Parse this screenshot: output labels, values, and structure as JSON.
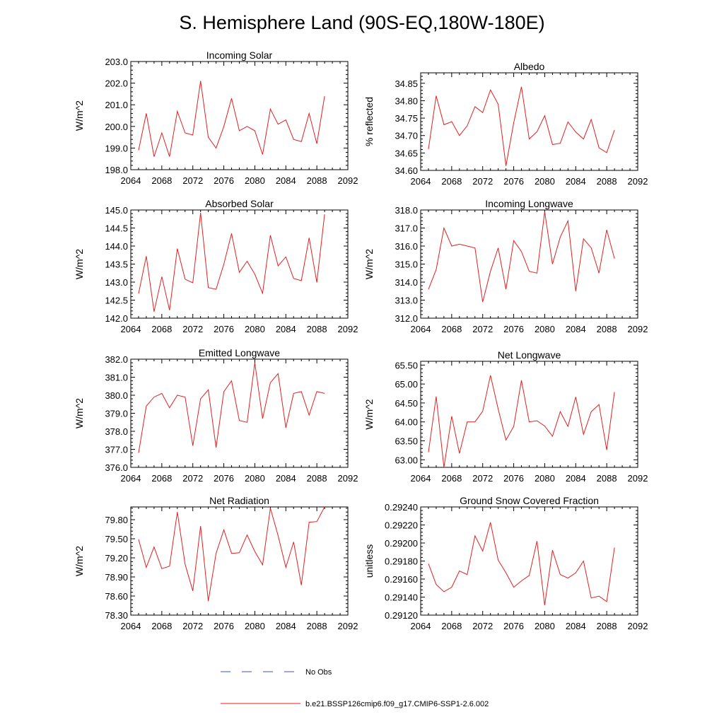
{
  "figure": {
    "title": "S. Hemisphere Land (90S-EQ,180W-180E)",
    "legend": [
      {
        "label": "No Obs",
        "color": "#3b4fc4",
        "dashed": true
      },
      {
        "label": "b.e21.BSSP126cmip6.f09_g17.CMIP6-SSP1-2.6.002",
        "color": "#e02020",
        "dashed": false
      }
    ]
  },
  "chart_data": [
    {
      "type": "line",
      "title": "Incoming Solar",
      "xlabel": "",
      "ylabel": "W/m^2",
      "xlim": [
        2064,
        2092
      ],
      "ylim": [
        198.0,
        203.0
      ],
      "xticks": [
        2064,
        2068,
        2072,
        2076,
        2080,
        2084,
        2088,
        2092
      ],
      "yticks": [
        198.0,
        199.0,
        200.0,
        201.0,
        202.0,
        203.0
      ],
      "ytick_labels": [
        "198.0",
        "199.0",
        "200.0",
        "201.0",
        "202.0",
        "203.0"
      ],
      "x": [
        2065,
        2066,
        2067,
        2068,
        2069,
        2070,
        2071,
        2072,
        2073,
        2074,
        2075,
        2076,
        2077,
        2078,
        2079,
        2080,
        2081,
        2082,
        2083,
        2084,
        2085,
        2086,
        2087,
        2088,
        2089
      ],
      "series": [
        {
          "name": "b.e21.BSSP126cmip6.f09_g17.CMIP6-SSP1-2.6.002",
          "color": "#e02020",
          "values": [
            198.9,
            200.6,
            198.6,
            199.7,
            198.6,
            200.7,
            199.7,
            199.6,
            202.1,
            199.5,
            199.0,
            200.0,
            201.3,
            199.8,
            200.0,
            199.8,
            198.7,
            200.8,
            200.1,
            200.3,
            199.4,
            199.3,
            200.6,
            199.2,
            201.4
          ]
        }
      ]
    },
    {
      "type": "line",
      "title": "Albedo",
      "xlabel": "",
      "ylabel": "% reflected",
      "xlim": [
        2064,
        2092
      ],
      "ylim": [
        34.6,
        34.88
      ],
      "xticks": [
        2064,
        2068,
        2072,
        2076,
        2080,
        2084,
        2088,
        2092
      ],
      "yticks": [
        34.6,
        34.65,
        34.7,
        34.75,
        34.8,
        34.85
      ],
      "ytick_labels": [
        "34.60",
        "34.65",
        "34.70",
        "34.75",
        "34.80",
        "34.85"
      ],
      "x": [
        2065,
        2066,
        2067,
        2068,
        2069,
        2070,
        2071,
        2072,
        2073,
        2074,
        2075,
        2076,
        2077,
        2078,
        2079,
        2080,
        2081,
        2082,
        2083,
        2084,
        2085,
        2086,
        2087,
        2088,
        2089
      ],
      "series": [
        {
          "name": "b.e21.BSSP126cmip6.f09_g17.CMIP6-SSP1-2.6.002",
          "color": "#e02020",
          "values": [
            34.661,
            34.814,
            34.731,
            34.74,
            34.7,
            34.728,
            34.783,
            34.766,
            34.831,
            34.79,
            34.613,
            34.737,
            34.84,
            34.69,
            34.711,
            34.757,
            34.674,
            34.678,
            34.739,
            34.71,
            34.69,
            34.746,
            34.665,
            34.651,
            34.716
          ]
        }
      ]
    },
    {
      "type": "line",
      "title": "Absorbed Solar",
      "xlabel": "",
      "ylabel": "W/m^2",
      "xlim": [
        2064,
        2092
      ],
      "ylim": [
        142.0,
        145.0
      ],
      "xticks": [
        2064,
        2068,
        2072,
        2076,
        2080,
        2084,
        2088,
        2092
      ],
      "yticks": [
        142.0,
        142.5,
        143.0,
        143.5,
        144.0,
        144.5,
        145.0
      ],
      "ytick_labels": [
        "142.0",
        "142.5",
        "143.0",
        "143.5",
        "144.0",
        "144.5",
        "145.0"
      ],
      "x": [
        2065,
        2066,
        2067,
        2068,
        2069,
        2070,
        2071,
        2072,
        2073,
        2074,
        2075,
        2076,
        2077,
        2078,
        2079,
        2080,
        2081,
        2082,
        2083,
        2084,
        2085,
        2086,
        2087,
        2088,
        2089
      ],
      "series": [
        {
          "name": "b.e21.BSSP126cmip6.f09_g17.CMIP6-SSP1-2.6.002",
          "color": "#e02020",
          "values": [
            142.68,
            143.72,
            142.18,
            143.15,
            142.22,
            143.93,
            143.08,
            142.98,
            144.92,
            142.85,
            142.8,
            143.5,
            144.35,
            143.27,
            143.58,
            143.22,
            142.69,
            144.3,
            143.45,
            143.7,
            143.1,
            143.04,
            144.23,
            142.99,
            144.88
          ]
        }
      ]
    },
    {
      "type": "line",
      "title": "Incoming Longwave",
      "xlabel": "",
      "ylabel": "W/m^2",
      "xlim": [
        2064,
        2092
      ],
      "ylim": [
        312.0,
        318.0
      ],
      "xticks": [
        2064,
        2068,
        2072,
        2076,
        2080,
        2084,
        2088,
        2092
      ],
      "yticks": [
        312.0,
        313.0,
        314.0,
        315.0,
        316.0,
        317.0,
        318.0
      ],
      "ytick_labels": [
        "312.0",
        "313.0",
        "314.0",
        "315.0",
        "316.0",
        "317.0",
        "318.0"
      ],
      "x": [
        2065,
        2066,
        2067,
        2068,
        2069,
        2070,
        2071,
        2072,
        2073,
        2074,
        2075,
        2076,
        2077,
        2078,
        2079,
        2080,
        2081,
        2082,
        2083,
        2084,
        2085,
        2086,
        2087,
        2088,
        2089
      ],
      "series": [
        {
          "name": "b.e21.BSSP126cmip6.f09_g17.CMIP6-SSP1-2.6.002",
          "color": "#e02020",
          "values": [
            313.6,
            314.7,
            317.0,
            316.0,
            316.1,
            316.0,
            315.9,
            312.9,
            314.6,
            315.9,
            313.6,
            316.3,
            315.7,
            314.6,
            314.5,
            317.9,
            315.0,
            316.5,
            317.4,
            313.5,
            316.4,
            315.9,
            314.5,
            316.9,
            315.3
          ]
        }
      ]
    },
    {
      "type": "line",
      "title": "Emitted Longwave",
      "xlabel": "",
      "ylabel": "W/m^2",
      "xlim": [
        2064,
        2092
      ],
      "ylim": [
        376.0,
        382.0
      ],
      "xticks": [
        2064,
        2068,
        2072,
        2076,
        2080,
        2084,
        2088,
        2092
      ],
      "yticks": [
        376.0,
        377.0,
        378.0,
        379.0,
        380.0,
        381.0,
        382.0
      ],
      "ytick_labels": [
        "376.0",
        "377.0",
        "378.0",
        "379.0",
        "380.0",
        "381.0",
        "382.0"
      ],
      "x": [
        2065,
        2066,
        2067,
        2068,
        2069,
        2070,
        2071,
        2072,
        2073,
        2074,
        2075,
        2076,
        2077,
        2078,
        2079,
        2080,
        2081,
        2082,
        2083,
        2084,
        2085,
        2086,
        2087,
        2088,
        2089
      ],
      "series": [
        {
          "name": "b.e21.BSSP126cmip6.f09_g17.CMIP6-SSP1-2.6.002",
          "color": "#e02020",
          "values": [
            376.8,
            379.4,
            379.9,
            380.1,
            379.3,
            380.0,
            379.9,
            377.2,
            379.8,
            380.3,
            377.1,
            380.2,
            380.8,
            378.6,
            378.5,
            381.8,
            378.7,
            380.7,
            381.2,
            378.2,
            380.1,
            380.2,
            378.9,
            380.2,
            380.1
          ]
        }
      ]
    },
    {
      "type": "line",
      "title": "Net Longwave",
      "xlabel": "",
      "ylabel": "W/m^2",
      "xlim": [
        2064,
        2092
      ],
      "ylim": [
        62.8,
        65.6
      ],
      "xticks": [
        2064,
        2068,
        2072,
        2076,
        2080,
        2084,
        2088,
        2092
      ],
      "yticks": [
        63.0,
        63.5,
        64.0,
        64.5,
        65.0,
        65.5
      ],
      "ytick_labels": [
        "63.00",
        "63.50",
        "64.00",
        "64.50",
        "65.00",
        "65.50"
      ],
      "x": [
        2065,
        2066,
        2067,
        2068,
        2069,
        2070,
        2071,
        2072,
        2073,
        2074,
        2075,
        2076,
        2077,
        2078,
        2079,
        2080,
        2081,
        2082,
        2083,
        2084,
        2085,
        2086,
        2087,
        2088,
        2089
      ],
      "series": [
        {
          "name": "b.e21.BSSP126cmip6.f09_g17.CMIP6-SSP1-2.6.002",
          "color": "#e02020",
          "values": [
            63.2,
            64.67,
            62.8,
            64.15,
            63.17,
            64.0,
            64.0,
            64.28,
            65.23,
            64.34,
            63.52,
            63.88,
            65.1,
            64.0,
            64.03,
            63.89,
            63.62,
            64.27,
            63.88,
            64.66,
            63.67,
            64.27,
            64.46,
            63.26,
            64.79
          ]
        }
      ]
    },
    {
      "type": "line",
      "title": "Net Radiation",
      "xlabel": "",
      "ylabel": "W/m^2",
      "xlim": [
        2064,
        2092
      ],
      "ylim": [
        78.3,
        80.0
      ],
      "xticks": [
        2064,
        2068,
        2072,
        2076,
        2080,
        2084,
        2088,
        2092
      ],
      "yticks": [
        78.3,
        78.6,
        78.9,
        79.2,
        79.5,
        79.8
      ],
      "ytick_labels": [
        "78.30",
        "78.60",
        "78.90",
        "79.20",
        "79.50",
        "79.80"
      ],
      "x": [
        2065,
        2066,
        2067,
        2068,
        2069,
        2070,
        2071,
        2072,
        2073,
        2074,
        2075,
        2076,
        2077,
        2078,
        2079,
        2080,
        2081,
        2082,
        2083,
        2084,
        2085,
        2086,
        2087,
        2088,
        2089
      ],
      "series": [
        {
          "name": "b.e21.BSSP126cmip6.f09_g17.CMIP6-SSP1-2.6.002",
          "color": "#e02020",
          "values": [
            79.49,
            79.05,
            79.37,
            79.03,
            79.07,
            79.92,
            79.1,
            78.68,
            79.7,
            78.52,
            79.27,
            79.64,
            79.27,
            79.28,
            79.56,
            79.3,
            79.09,
            79.98,
            79.55,
            79.05,
            79.45,
            78.77,
            79.76,
            79.77,
            80.0
          ]
        }
      ]
    },
    {
      "type": "line",
      "title": "Ground Snow Covered Fraction",
      "xlabel": "",
      "ylabel": "unitless",
      "xlim": [
        2064,
        2092
      ],
      "ylim": [
        0.2912,
        0.2924
      ],
      "xticks": [
        2064,
        2068,
        2072,
        2076,
        2080,
        2084,
        2088,
        2092
      ],
      "yticks": [
        0.2912,
        0.2914,
        0.2916,
        0.2918,
        0.292,
        0.2922,
        0.2924
      ],
      "ytick_labels": [
        "0.29120",
        "0.29140",
        "0.29160",
        "0.29180",
        "0.29200",
        "0.29220",
        "0.29240"
      ],
      "x": [
        2065,
        2066,
        2067,
        2068,
        2069,
        2070,
        2071,
        2072,
        2073,
        2074,
        2075,
        2076,
        2077,
        2078,
        2079,
        2080,
        2081,
        2082,
        2083,
        2084,
        2085,
        2086,
        2087,
        2088,
        2089
      ],
      "series": [
        {
          "name": "b.e21.BSSP126cmip6.f09_g17.CMIP6-SSP1-2.6.002",
          "color": "#e02020",
          "values": [
            0.29177,
            0.29154,
            0.29146,
            0.29151,
            0.29169,
            0.29165,
            0.29208,
            0.29191,
            0.29223,
            0.29181,
            0.29167,
            0.29151,
            0.29158,
            0.29164,
            0.29202,
            0.29131,
            0.29192,
            0.29165,
            0.29161,
            0.29167,
            0.2918,
            0.29139,
            0.29141,
            0.29135,
            0.29195
          ]
        }
      ]
    }
  ]
}
